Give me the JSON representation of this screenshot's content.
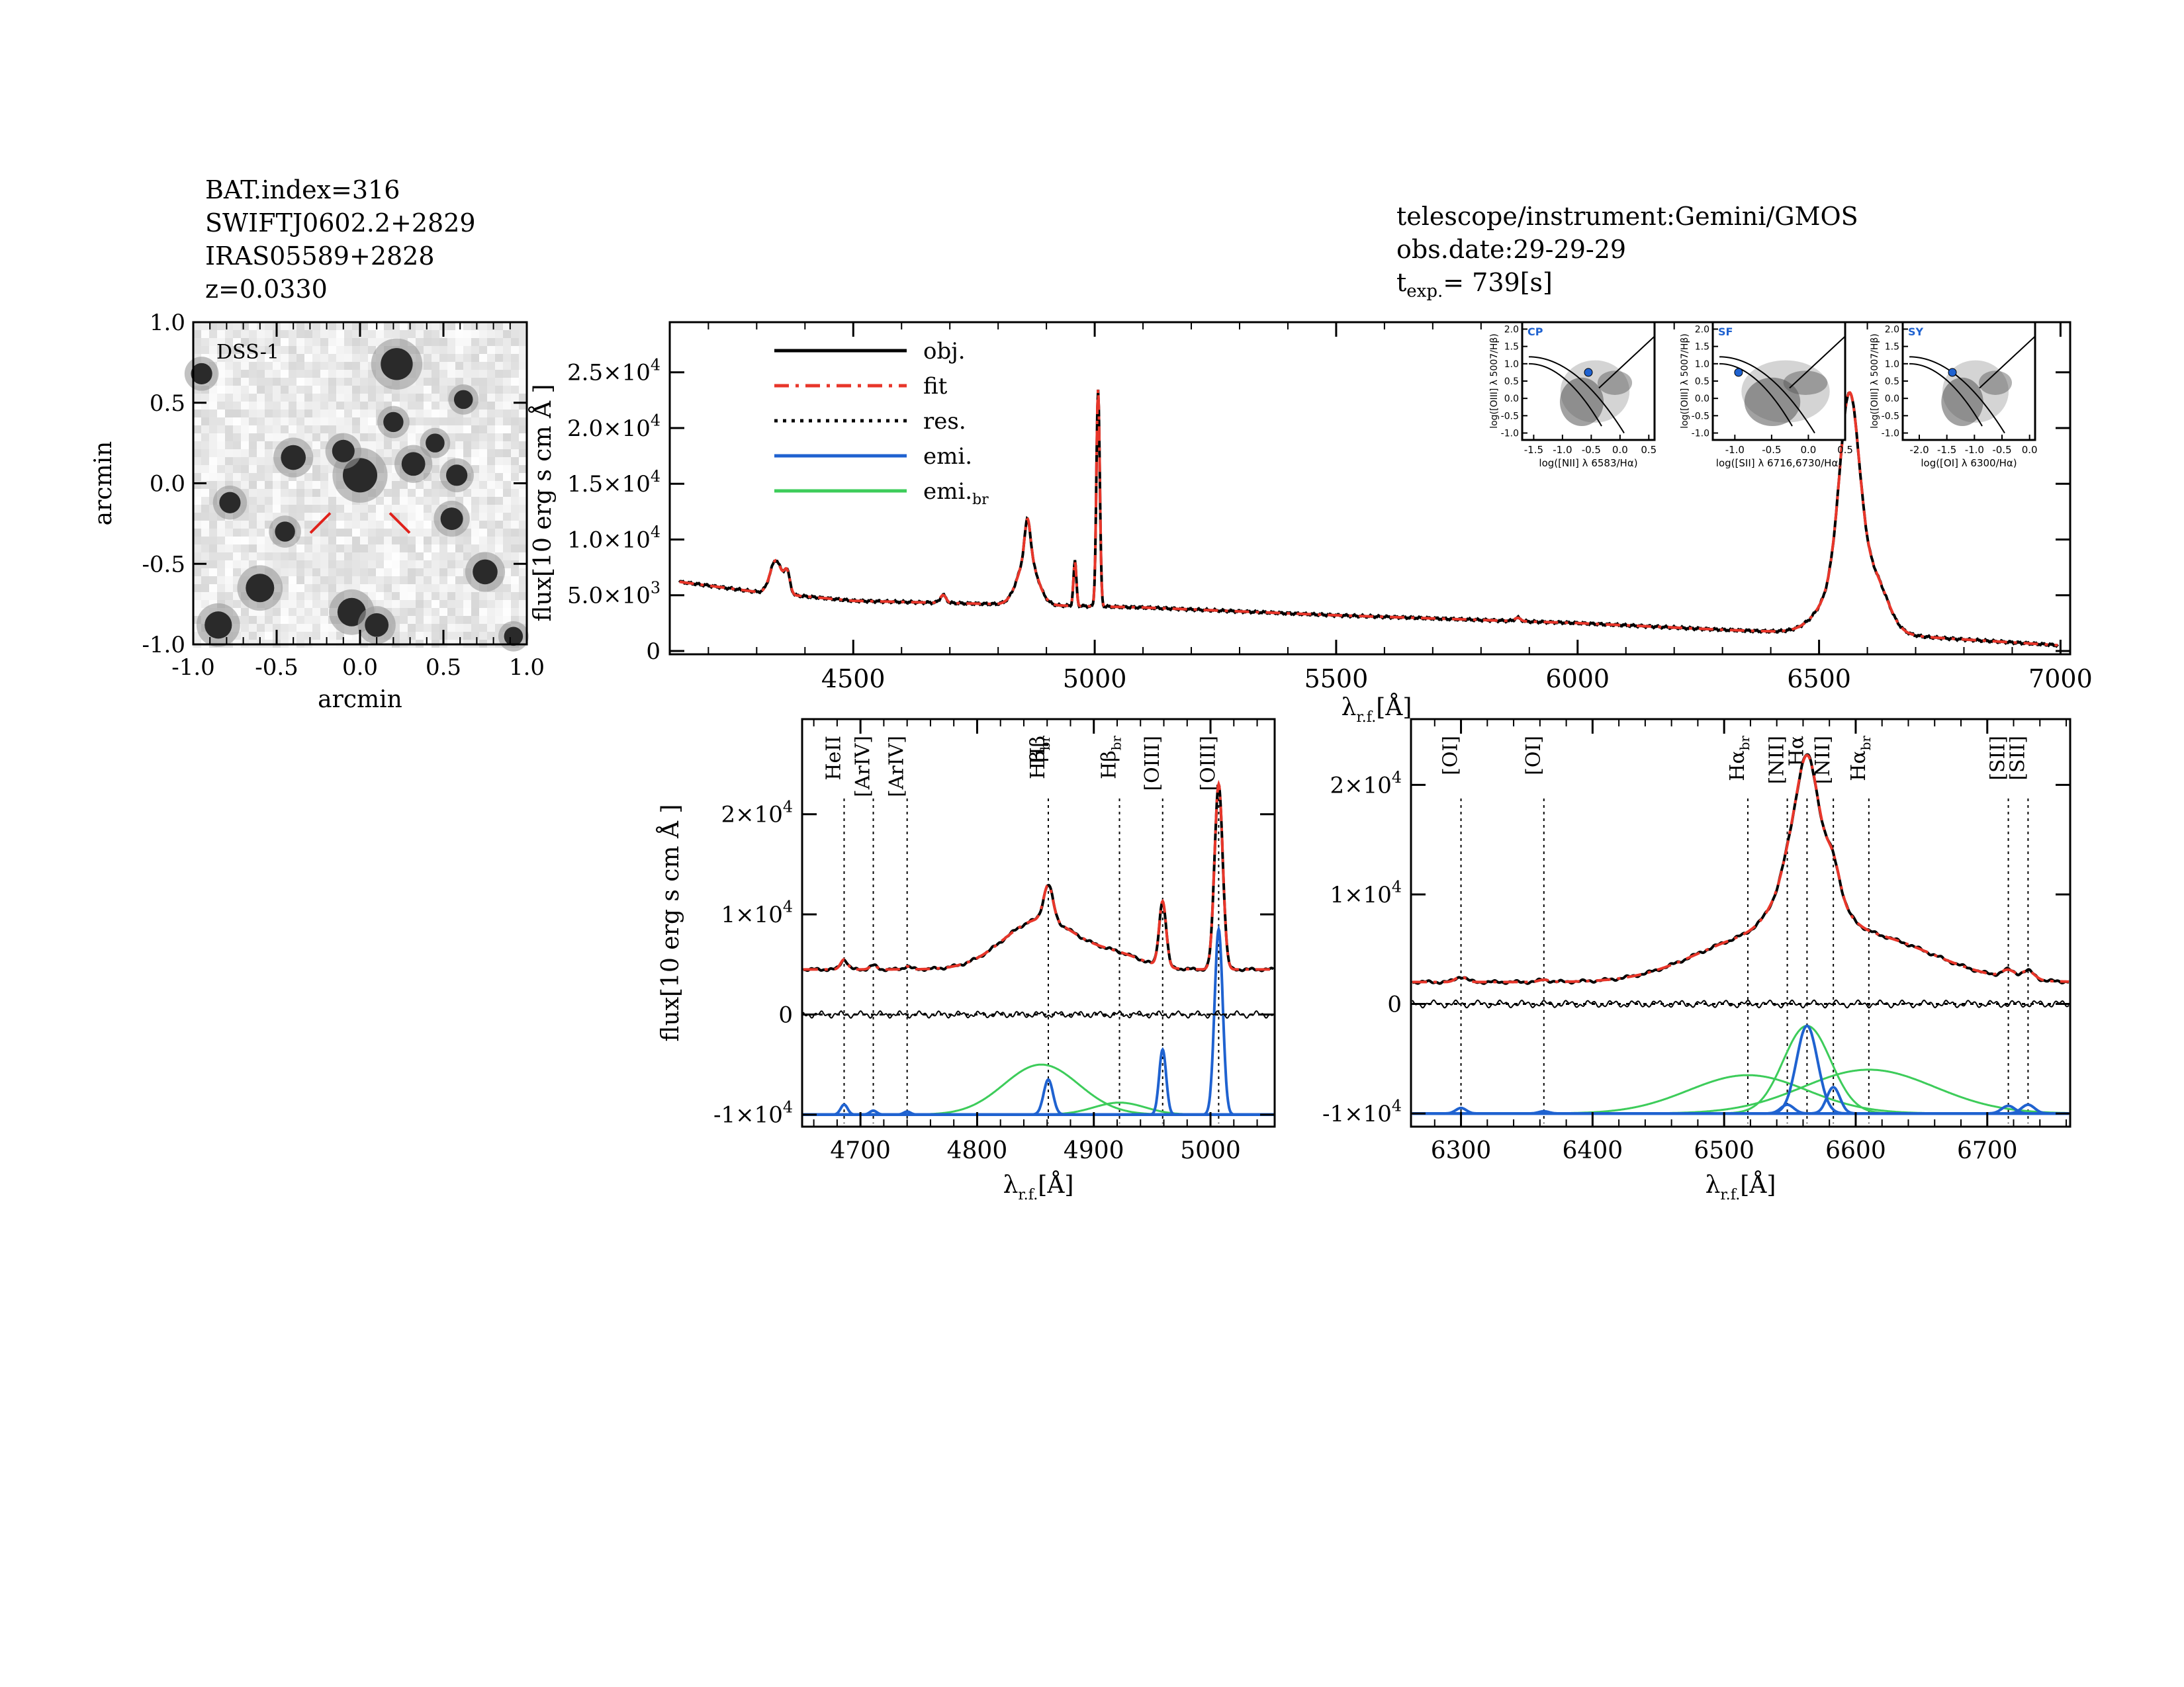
{
  "header_left": {
    "bat_index": "BAT.index=316",
    "swift_name": "SWIFTJ0602.2+2829",
    "alt_name": "IRAS05589+2828",
    "redshift": "z=0.0330"
  },
  "header_right": {
    "instrument": "telescope/instrument:Gemini/GMOS",
    "obs_date": "obs.date:29-29-29",
    "exptime_label": "t",
    "exptime_sub": "exp.",
    "exptime_value": "=  739[s]"
  },
  "colors": {
    "obj": "#000000",
    "fit": "#e8362a",
    "res": "#000000",
    "emi": "#1f62d0",
    "emi_br": "#3dcc5a",
    "image_marker": "#e0201a"
  },
  "chart_data": [
    {
      "id": "dss_image",
      "type": "image",
      "label": "DSS-1",
      "xlabel": "arcmin",
      "ylabel": "arcmin",
      "xlim": [
        -1.0,
        1.0
      ],
      "ylim": [
        -1.0,
        1.0
      ],
      "xticks": [
        "-1.0",
        "-0.5",
        "0.0",
        "0.5",
        "1.0"
      ],
      "yticks": [
        "1.0",
        "0.5",
        "0.0",
        "-0.5",
        "-1.0"
      ],
      "stars": [
        {
          "x": 0.0,
          "y": 0.05,
          "mag": 1.0
        },
        {
          "x": 0.22,
          "y": 0.74,
          "mag": 0.9
        },
        {
          "x": -0.4,
          "y": 0.16,
          "mag": 0.6
        },
        {
          "x": 0.32,
          "y": 0.12,
          "mag": 0.55
        },
        {
          "x": -0.1,
          "y": 0.2,
          "mag": 0.5
        },
        {
          "x": -0.6,
          "y": -0.65,
          "mag": 0.75
        },
        {
          "x": -0.85,
          "y": -0.88,
          "mag": 0.7
        },
        {
          "x": -0.05,
          "y": -0.8,
          "mag": 0.75
        },
        {
          "x": 0.75,
          "y": -0.55,
          "mag": 0.6
        },
        {
          "x": 0.55,
          "y": -0.22,
          "mag": 0.5
        },
        {
          "x": -0.78,
          "y": -0.12,
          "mag": 0.45
        },
        {
          "x": -0.45,
          "y": -0.3,
          "mag": 0.4
        },
        {
          "x": 0.1,
          "y": -0.88,
          "mag": 0.55
        },
        {
          "x": -0.95,
          "y": 0.68,
          "mag": 0.45
        },
        {
          "x": 0.58,
          "y": 0.05,
          "mag": 0.45
        },
        {
          "x": 0.2,
          "y": 0.38,
          "mag": 0.4
        },
        {
          "x": 0.45,
          "y": 0.25,
          "mag": 0.35
        },
        {
          "x": 0.62,
          "y": 0.52,
          "mag": 0.35
        },
        {
          "x": 0.92,
          "y": -0.95,
          "mag": 0.35
        }
      ]
    },
    {
      "id": "full_spectrum",
      "type": "line",
      "xlabel": "λ",
      "xlabel_sub": "r.f.",
      "xlabel_unit": "[Å]",
      "ylabel": "flux[10   erg s  cm  Å  ]",
      "xlim": [
        4120,
        7020
      ],
      "ylim": [
        -300,
        29500
      ],
      "xticks": [
        4500,
        5000,
        5500,
        6000,
        6500,
        7000
      ],
      "yticks": [
        {
          "value": 0,
          "label": "0"
        },
        {
          "value": 5000,
          "label": "5.0×10³"
        },
        {
          "value": 10000,
          "label": "1.0×10⁴"
        },
        {
          "value": 15000,
          "label": "1.5×10⁴"
        },
        {
          "value": 20000,
          "label": "2.0×10⁴"
        },
        {
          "value": 25000,
          "label": "2.5×10⁴"
        }
      ],
      "legend": [
        {
          "label": "obj.",
          "style": "solid",
          "color": "#000000"
        },
        {
          "label": "fit",
          "style": "dashdot",
          "color": "#e8362a"
        },
        {
          "label": "res.",
          "style": "dotted",
          "color": "#000000"
        },
        {
          "label": "emi.",
          "style": "solid",
          "color": "#1f62d0"
        },
        {
          "label": "emi.",
          "label_sub": "br",
          "style": "solid",
          "color": "#3dcc5a"
        }
      ],
      "continuum": [
        {
          "x": 4140,
          "y": 6200
        },
        {
          "x": 4300,
          "y": 5300
        },
        {
          "x": 4500,
          "y": 4500
        },
        {
          "x": 4800,
          "y": 4200
        },
        {
          "x": 5100,
          "y": 3900
        },
        {
          "x": 5500,
          "y": 3200
        },
        {
          "x": 6000,
          "y": 2500
        },
        {
          "x": 6300,
          "y": 1900
        },
        {
          "x": 6700,
          "y": 1300
        },
        {
          "x": 7000,
          "y": 500
        }
      ],
      "lines": [
        {
          "center": 4340,
          "amp": 3000,
          "width": 12
        },
        {
          "center": 4363,
          "amp": 1800,
          "width": 6
        },
        {
          "center": 4686,
          "amp": 700,
          "width": 6
        },
        {
          "center": 4861,
          "amp": 3500,
          "width": 6
        },
        {
          "center": 4861,
          "amp": 4200,
          "width": 20
        },
        {
          "center": 4959,
          "amp": 4000,
          "width": 3
        },
        {
          "center": 5007,
          "amp": 19500,
          "width": 3.5
        },
        {
          "center": 5876,
          "amp": 300,
          "width": 6
        },
        {
          "center": 6563,
          "amp": 16000,
          "width": 20
        },
        {
          "center": 6563,
          "amp": 5500,
          "width": 48
        },
        {
          "center": 6620,
          "amp": 2500,
          "width": 25
        }
      ]
    },
    {
      "id": "hbeta_zoom",
      "type": "line",
      "xlabel": "λ",
      "xlabel_sub": "r.f.",
      "xlabel_unit": "[Å]",
      "ylabel": "flux[10   erg s  cm  Å  ]",
      "xlim": [
        4650,
        5055
      ],
      "ylim": [
        -11200,
        29500
      ],
      "xticks": [
        4700,
        4800,
        4900,
        5000
      ],
      "yticks": [
        {
          "value": -10000,
          "label": "-1×10⁴"
        },
        {
          "value": 0,
          "label": "0"
        },
        {
          "value": 10000,
          "label": "1×10⁴"
        },
        {
          "value": 20000,
          "label": "2×10⁴"
        }
      ],
      "line_markers": [
        {
          "label": "HeII",
          "x": 4686
        },
        {
          "label": "[ArIV]",
          "x": 4711
        },
        {
          "label": "[ArIV]",
          "x": 4740
        },
        {
          "label": "Hβ",
          "x": 4861
        },
        {
          "label": "Hβ",
          "label_sub": "br",
          "x": 4861
        },
        {
          "label": "Hβ",
          "label_sub": "br",
          "x": 4922
        },
        {
          "label": "[OIII]",
          "x": 4959
        },
        {
          "label": "[OIII]",
          "x": 5007
        }
      ],
      "continuum_level": 4500,
      "emi_narrow": [
        {
          "center": 4686,
          "amp": 1000,
          "width": 3
        },
        {
          "center": 4711,
          "amp": 400,
          "width": 3
        },
        {
          "center": 4740,
          "amp": 300,
          "width": 3
        },
        {
          "center": 4861,
          "amp": 3500,
          "width": 4
        },
        {
          "center": 4959,
          "amp": 6500,
          "width": 3
        },
        {
          "center": 5007,
          "amp": 18500,
          "width": 3.5
        }
      ],
      "emi_broad": [
        {
          "center": 4855,
          "amp": 5000,
          "width": 32
        },
        {
          "center": 4922,
          "amp": 1200,
          "width": 22
        }
      ],
      "emi_baseline": -10000,
      "residual_baseline": 0
    },
    {
      "id": "halpha_zoom",
      "type": "line",
      "xlabel": "λ",
      "xlabel_sub": "r.f.",
      "xlabel_unit": "[Å]",
      "xlim": [
        6262,
        6763
      ],
      "ylim": [
        -11200,
        26000
      ],
      "xticks": [
        6300,
        6400,
        6500,
        6600,
        6700
      ],
      "yticks": [
        {
          "value": -10000,
          "label": "-1×10⁴"
        },
        {
          "value": 0,
          "label": "0"
        },
        {
          "value": 10000,
          "label": "1×10⁴"
        },
        {
          "value": 20000,
          "label": "2×10⁴"
        }
      ],
      "line_markers": [
        {
          "label": "[OI]",
          "x": 6300
        },
        {
          "label": "[OI]",
          "x": 6363
        },
        {
          "label": "Hα",
          "label_sub": "br",
          "x": 6518
        },
        {
          "label": "[NII]",
          "x": 6548
        },
        {
          "label": "Hα",
          "x": 6563
        },
        {
          "label": "[NII]",
          "x": 6583
        },
        {
          "label": "Hα",
          "label_sub": "br",
          "x": 6610
        },
        {
          "label": "[SII]",
          "x": 6716
        },
        {
          "label": "[SII]",
          "x": 6731
        }
      ],
      "continuum_level": 2000,
      "emi_narrow": [
        {
          "center": 6300,
          "amp": 500,
          "width": 4
        },
        {
          "center": 6363,
          "amp": 200,
          "width": 4
        },
        {
          "center": 6548,
          "amp": 800,
          "width": 5
        },
        {
          "center": 6563,
          "amp": 8000,
          "width": 8
        },
        {
          "center": 6583,
          "amp": 2400,
          "width": 5
        },
        {
          "center": 6716,
          "amp": 700,
          "width": 5
        },
        {
          "center": 6731,
          "amp": 800,
          "width": 5
        }
      ],
      "emi_broad": [
        {
          "center": 6518,
          "amp": 3500,
          "width": 45
        },
        {
          "center": 6563,
          "amp": 8000,
          "width": 18
        },
        {
          "center": 6610,
          "amp": 4000,
          "width": 50
        }
      ],
      "emi_baseline": -10000,
      "residual_baseline": 0
    },
    {
      "id": "bpt_nii",
      "type": "scatter",
      "label": "CP",
      "xlabel": "log([NII] λ 6583/Hα)",
      "ylabel": "log([OIII] λ 5007/Hβ)",
      "xlim": [
        -1.7,
        0.6
      ],
      "ylim": [
        -1.2,
        2.2
      ],
      "xticks": [
        "-1.5",
        "-1.0",
        "-0.5",
        "0.0",
        "0.5"
      ],
      "yticks": [
        "2.0",
        "1.5",
        "1.0",
        "0.5",
        "0.0",
        "-0.5",
        "-1.0"
      ],
      "point": {
        "x": -0.55,
        "y": 0.75
      }
    },
    {
      "id": "bpt_sii",
      "type": "scatter",
      "label": "SF",
      "xlabel": "log([SII] λ 6716,6730/Hα)",
      "ylabel": "log([OIII] λ 5007/Hβ)",
      "xlim": [
        -1.3,
        0.5
      ],
      "ylim": [
        -1.2,
        2.2
      ],
      "xticks": [
        "-1.0",
        "-0.5",
        "0.0",
        "0.5"
      ],
      "yticks": [
        "2.0",
        "1.5",
        "1.0",
        "0.5",
        "0.0",
        "-0.5",
        "-1.0"
      ],
      "point": {
        "x": -0.95,
        "y": 0.75
      }
    },
    {
      "id": "bpt_oi",
      "type": "scatter",
      "label": "SY",
      "xlabel": "log([OI] λ 6300/Hα)",
      "ylabel": "log([OIII] λ 5007/Hβ)",
      "xlim": [
        -2.3,
        0.1
      ],
      "ylim": [
        -1.2,
        2.2
      ],
      "xticks": [
        "-2.0",
        "-1.5",
        "-1.0",
        "-0.5",
        "0.0"
      ],
      "yticks": [
        "2.0",
        "1.5",
        "1.0",
        "0.5",
        "0.0",
        "-0.5",
        "-1.0"
      ],
      "point": {
        "x": -1.4,
        "y": 0.75
      }
    }
  ]
}
